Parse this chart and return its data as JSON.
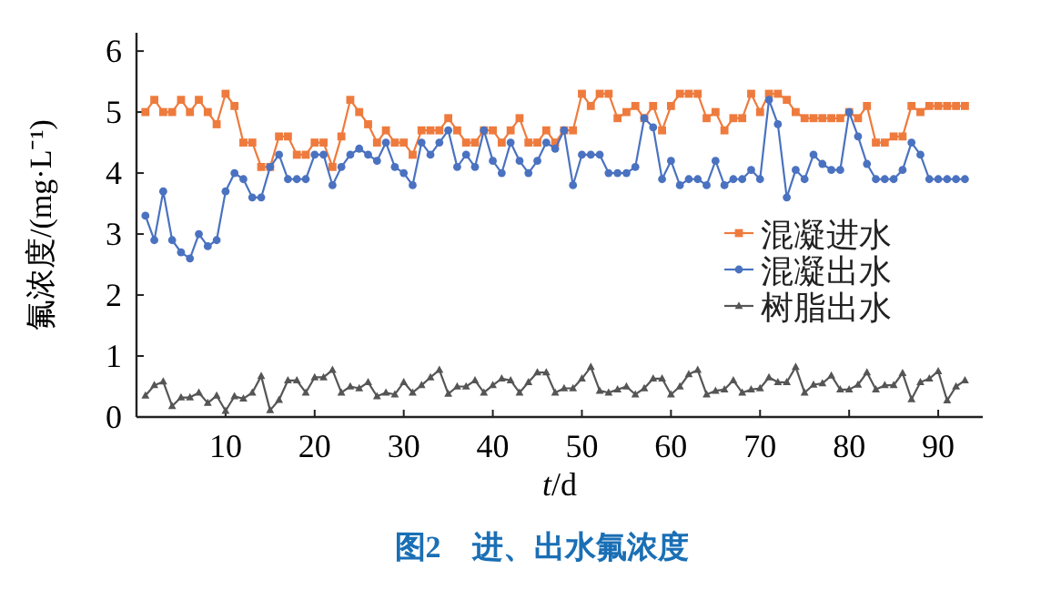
{
  "chart_data": {
    "type": "line",
    "title": "图2　进、出水氟浓度",
    "xlabel": "t/d",
    "ylabel": "氟浓度/(mg·L⁻¹)",
    "x": [
      1,
      2,
      3,
      4,
      5,
      6,
      7,
      8,
      9,
      10,
      11,
      12,
      13,
      14,
      15,
      16,
      17,
      18,
      19,
      20,
      21,
      22,
      23,
      24,
      25,
      26,
      27,
      28,
      29,
      30,
      31,
      32,
      33,
      34,
      35,
      36,
      37,
      38,
      39,
      40,
      41,
      42,
      43,
      44,
      45,
      46,
      47,
      48,
      49,
      50,
      51,
      52,
      53,
      54,
      55,
      56,
      57,
      58,
      59,
      60,
      61,
      62,
      63,
      64,
      65,
      66,
      67,
      68,
      69,
      70,
      71,
      72,
      73,
      74,
      75,
      76,
      77,
      78,
      79,
      80,
      81,
      82,
      83,
      84,
      85,
      86,
      87,
      88,
      89,
      90,
      91,
      92,
      93
    ],
    "series": [
      {
        "name": "混凝进水",
        "color": "#ee7b3d",
        "marker": "square",
        "values": [
          5.0,
          5.2,
          5.0,
          5.0,
          5.2,
          5.0,
          5.2,
          5.0,
          4.8,
          5.3,
          5.1,
          4.5,
          4.5,
          4.1,
          4.1,
          4.6,
          4.6,
          4.3,
          4.3,
          4.5,
          4.5,
          4.1,
          4.6,
          5.2,
          5.0,
          4.8,
          4.5,
          4.7,
          4.5,
          4.5,
          4.3,
          4.7,
          4.7,
          4.7,
          4.9,
          4.7,
          4.5,
          4.5,
          4.7,
          4.7,
          4.5,
          4.7,
          4.9,
          4.5,
          4.5,
          4.7,
          4.5,
          4.7,
          4.7,
          5.3,
          5.1,
          5.3,
          5.3,
          4.9,
          5.0,
          5.1,
          4.9,
          5.1,
          4.7,
          5.1,
          5.3,
          5.3,
          5.3,
          4.9,
          5.0,
          4.7,
          4.9,
          4.9,
          5.3,
          5.0,
          5.3,
          5.3,
          5.2,
          5.0,
          4.9,
          4.9,
          4.9,
          4.9,
          4.9,
          5.0,
          4.9,
          5.1,
          4.5,
          4.5,
          4.6,
          4.6,
          5.1,
          5.0,
          5.1,
          5.1,
          5.1,
          5.1,
          5.1
        ]
      },
      {
        "name": "混凝出水",
        "color": "#4a72c0",
        "marker": "circle",
        "values": [
          3.3,
          2.9,
          3.7,
          2.9,
          2.7,
          2.6,
          3.0,
          2.8,
          2.9,
          3.7,
          4.0,
          3.9,
          3.6,
          3.6,
          4.1,
          4.3,
          3.9,
          3.9,
          3.9,
          4.3,
          4.3,
          3.8,
          4.1,
          4.3,
          4.4,
          4.3,
          4.2,
          4.5,
          4.1,
          4.0,
          3.8,
          4.5,
          4.3,
          4.5,
          4.7,
          4.1,
          4.3,
          4.1,
          4.7,
          4.2,
          4.0,
          4.5,
          4.2,
          4.0,
          4.2,
          4.5,
          4.4,
          4.7,
          3.8,
          4.3,
          4.3,
          4.3,
          4.0,
          4.0,
          4.0,
          4.1,
          4.9,
          4.75,
          3.9,
          4.2,
          3.8,
          3.9,
          3.9,
          3.8,
          4.2,
          3.8,
          3.9,
          3.9,
          4.05,
          3.9,
          5.2,
          4.8,
          3.6,
          4.05,
          3.9,
          4.3,
          4.15,
          4.05,
          4.05,
          5.0,
          4.6,
          4.15,
          3.9,
          3.9,
          3.9,
          4.05,
          4.5,
          4.3,
          3.9,
          3.9,
          3.9,
          3.9,
          3.9
        ]
      },
      {
        "name": "树脂出水",
        "color": "#555555",
        "marker": "triangle",
        "values": [
          0.35,
          0.52,
          0.58,
          0.18,
          0.32,
          0.32,
          0.4,
          0.23,
          0.35,
          0.1,
          0.34,
          0.3,
          0.4,
          0.67,
          0.11,
          0.28,
          0.6,
          0.6,
          0.4,
          0.65,
          0.65,
          0.77,
          0.4,
          0.5,
          0.47,
          0.57,
          0.34,
          0.4,
          0.37,
          0.57,
          0.4,
          0.52,
          0.65,
          0.77,
          0.38,
          0.5,
          0.5,
          0.6,
          0.4,
          0.52,
          0.63,
          0.6,
          0.4,
          0.57,
          0.73,
          0.73,
          0.4,
          0.47,
          0.47,
          0.63,
          0.82,
          0.43,
          0.4,
          0.45,
          0.5,
          0.37,
          0.47,
          0.63,
          0.63,
          0.37,
          0.5,
          0.7,
          0.77,
          0.37,
          0.43,
          0.45,
          0.6,
          0.4,
          0.45,
          0.47,
          0.65,
          0.57,
          0.57,
          0.82,
          0.4,
          0.53,
          0.55,
          0.68,
          0.45,
          0.45,
          0.53,
          0.73,
          0.45,
          0.52,
          0.52,
          0.72,
          0.29,
          0.57,
          0.63,
          0.75,
          0.27,
          0.5,
          0.6
        ]
      }
    ],
    "xlim": [
      0,
      95
    ],
    "xticks": [
      10,
      20,
      30,
      40,
      50,
      60,
      70,
      80,
      90
    ],
    "ylim": [
      0,
      6.3
    ],
    "yticks": [
      0,
      1,
      2,
      3,
      4,
      5,
      6
    ],
    "legend": "right",
    "grid": false
  }
}
